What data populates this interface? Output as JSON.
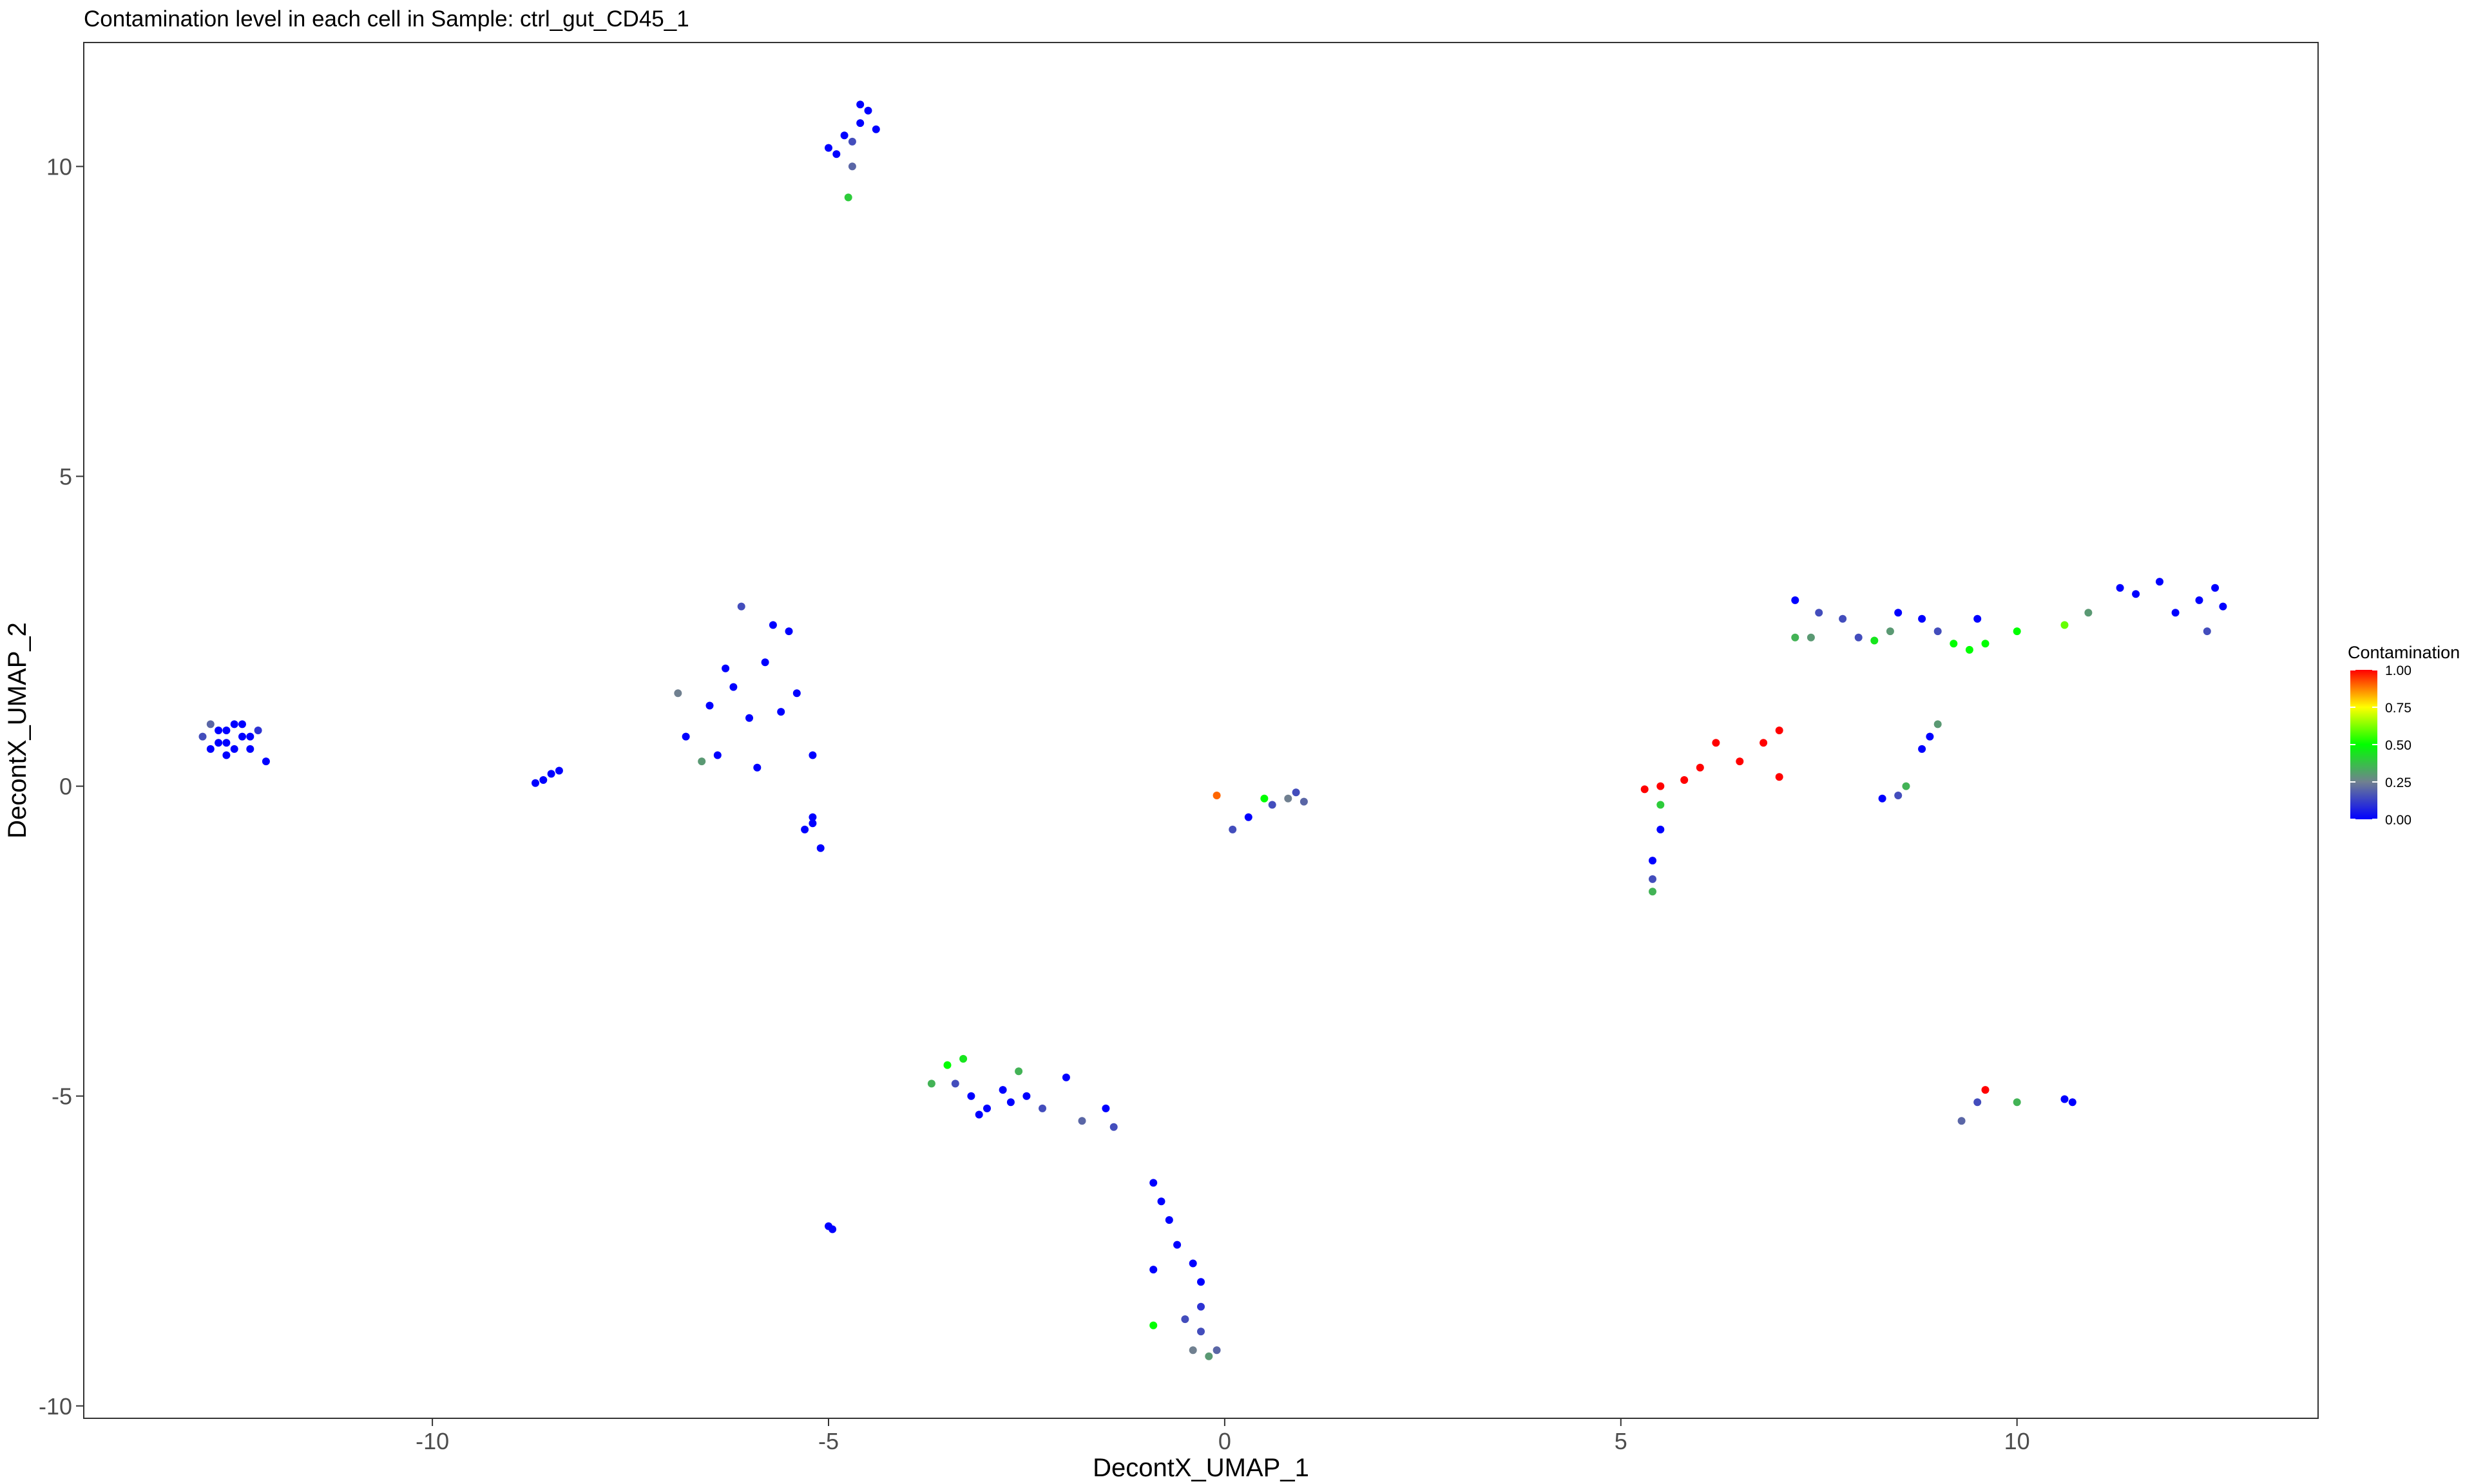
{
  "chart_data": {
    "type": "scatter",
    "title": "Contamination level in each cell in Sample: ctrl_gut_CD45_1",
    "xlabel": "DecontX_UMAP_1",
    "ylabel": "DecontX_UMAP_2",
    "xlim": [
      -14.4,
      13.8
    ],
    "ylim": [
      -10.2,
      12.0
    ],
    "x_ticks": [
      -10,
      -5,
      0,
      5,
      10
    ],
    "y_ticks": [
      -10,
      -5,
      0,
      5,
      10
    ],
    "x_tick_labels": [
      "-10",
      "-5",
      "0",
      "5",
      "10"
    ],
    "y_tick_labels": [
      "-10",
      "-5",
      "0",
      "5",
      "10"
    ],
    "grid": false,
    "legend": {
      "title": "Contamination",
      "position": "right",
      "ticks": [
        0.0,
        0.25,
        0.5,
        0.75,
        1.0
      ],
      "tick_labels": [
        "0.00",
        "0.25",
        "0.50",
        "0.75",
        "1.00"
      ],
      "colors": [
        "#0000ff",
        "#708090",
        "#00ff00",
        "#ffff00",
        "#ff0000"
      ]
    },
    "points": [
      [
        -12.7,
        0.9,
        0.0
      ],
      [
        -12.6,
        0.7,
        0.0
      ],
      [
        -12.4,
        0.8,
        0.0
      ],
      [
        -12.8,
        0.6,
        0.0
      ],
      [
        -12.5,
        1.0,
        0.0
      ],
      [
        -12.3,
        0.6,
        0.0
      ],
      [
        -12.9,
        0.8,
        0.15
      ],
      [
        -12.2,
        0.9,
        0.1
      ],
      [
        -12.6,
        0.5,
        0.0
      ],
      [
        -12.4,
        1.0,
        0.0
      ],
      [
        -12.7,
        0.7,
        0.0
      ],
      [
        -12.5,
        0.6,
        0.0
      ],
      [
        -12.3,
        0.8,
        0.0
      ],
      [
        -12.8,
        1.0,
        0.2
      ],
      [
        -12.1,
        0.4,
        0.0
      ],
      [
        -12.6,
        0.9,
        0.0
      ],
      [
        -8.5,
        0.2,
        0.0
      ],
      [
        -8.6,
        0.1,
        0.0
      ],
      [
        -8.7,
        0.05,
        0.0
      ],
      [
        -8.4,
        0.25,
        0.0
      ],
      [
        -6.5,
        1.3,
        0.0
      ],
      [
        -6.2,
        1.6,
        0.0
      ],
      [
        -6.0,
        1.1,
        0.0
      ],
      [
        -5.8,
        2.0,
        0.0
      ],
      [
        -5.5,
        2.5,
        0.0
      ],
      [
        -6.8,
        0.8,
        0.0
      ],
      [
        -6.4,
        0.5,
        0.0
      ],
      [
        -5.9,
        0.3,
        0.0
      ],
      [
        -6.1,
        2.9,
        0.15
      ],
      [
        -5.7,
        2.6,
        0.0
      ],
      [
        -5.4,
        1.5,
        0.0
      ],
      [
        -6.6,
        0.4,
        0.3
      ],
      [
        -6.3,
        1.9,
        0.0
      ],
      [
        -5.6,
        1.2,
        0.0
      ],
      [
        -6.9,
        1.5,
        0.25
      ],
      [
        -5.2,
        0.5,
        0.0
      ],
      [
        -5.2,
        -0.5,
        0.0
      ],
      [
        -5.3,
        -0.7,
        0.0
      ],
      [
        -5.1,
        -1.0,
        0.0
      ],
      [
        -5.2,
        -0.6,
        0.0
      ],
      [
        -4.8,
        10.5,
        0.0
      ],
      [
        -4.6,
        10.7,
        0.0
      ],
      [
        -4.9,
        10.2,
        0.0
      ],
      [
        -4.5,
        10.9,
        0.0
      ],
      [
        -4.7,
        10.4,
        0.15
      ],
      [
        -4.4,
        10.6,
        0.0
      ],
      [
        -5.0,
        10.3,
        0.0
      ],
      [
        -4.6,
        11.0,
        0.0
      ],
      [
        -4.75,
        9.5,
        0.4
      ],
      [
        -4.7,
        10.0,
        0.2
      ],
      [
        -5.0,
        -7.1,
        0.0
      ],
      [
        -4.95,
        -7.15,
        0.0
      ],
      [
        -3.5,
        -4.5,
        0.5
      ],
      [
        -3.4,
        -4.8,
        0.15
      ],
      [
        -3.2,
        -5.0,
        0.0
      ],
      [
        -3.0,
        -5.2,
        0.0
      ],
      [
        -2.8,
        -4.9,
        0.0
      ],
      [
        -2.5,
        -5.0,
        0.0
      ],
      [
        -2.3,
        -5.2,
        0.15
      ],
      [
        -2.0,
        -4.7,
        0.0
      ],
      [
        -3.7,
        -4.8,
        0.35
      ],
      [
        -2.6,
        -4.6,
        0.35
      ],
      [
        -1.8,
        -5.4,
        0.2
      ],
      [
        -1.4,
        -5.5,
        0.15
      ],
      [
        -1.5,
        -5.2,
        0.0
      ],
      [
        -3.1,
        -5.3,
        0.0
      ],
      [
        -2.7,
        -5.1,
        0.0
      ],
      [
        -3.3,
        -4.4,
        0.45
      ],
      [
        -0.9,
        -6.4,
        0.0
      ],
      [
        -0.8,
        -6.7,
        0.0
      ],
      [
        -0.7,
        -7.0,
        0.0
      ],
      [
        -0.6,
        -7.4,
        0.0
      ],
      [
        -0.4,
        -7.7,
        0.0
      ],
      [
        -0.3,
        -8.0,
        0.0
      ],
      [
        -0.3,
        -8.4,
        0.1
      ],
      [
        -0.3,
        -8.8,
        0.15
      ],
      [
        -0.4,
        -9.1,
        0.25
      ],
      [
        -0.2,
        -9.2,
        0.3
      ],
      [
        -0.9,
        -7.8,
        0.0
      ],
      [
        -0.5,
        -8.6,
        0.15
      ],
      [
        -0.9,
        -8.7,
        0.5
      ],
      [
        -0.1,
        -9.1,
        0.2
      ],
      [
        -0.1,
        -0.15,
        0.9
      ],
      [
        0.1,
        -0.7,
        0.15
      ],
      [
        0.3,
        -0.5,
        0.0
      ],
      [
        0.6,
        -0.3,
        0.15
      ],
      [
        0.8,
        -0.2,
        0.25
      ],
      [
        0.9,
        -0.1,
        0.15
      ],
      [
        1.0,
        -0.25,
        0.2
      ],
      [
        0.5,
        -0.2,
        0.5
      ],
      [
        5.3,
        -0.05,
        1.0
      ],
      [
        5.5,
        0.0,
        1.0
      ],
      [
        5.8,
        0.1,
        1.0
      ],
      [
        6.0,
        0.3,
        1.0
      ],
      [
        6.2,
        0.7,
        1.0
      ],
      [
        6.5,
        0.4,
        1.0
      ],
      [
        6.8,
        0.7,
        1.0
      ],
      [
        7.0,
        0.9,
        1.0
      ],
      [
        7.0,
        0.15,
        1.0
      ],
      [
        5.5,
        -0.3,
        0.4
      ],
      [
        5.4,
        -1.2,
        0.0
      ],
      [
        5.4,
        -1.5,
        0.15
      ],
      [
        5.4,
        -1.7,
        0.35
      ],
      [
        5.5,
        -0.7,
        0.0
      ],
      [
        7.2,
        3.0,
        0.0
      ],
      [
        7.5,
        2.8,
        0.15
      ],
      [
        7.4,
        2.4,
        0.3
      ],
      [
        7.8,
        2.7,
        0.15
      ],
      [
        8.2,
        2.35,
        0.45
      ],
      [
        8.4,
        2.5,
        0.3
      ],
      [
        8.5,
        2.8,
        0.0
      ],
      [
        8.8,
        2.7,
        0.0
      ],
      [
        9.0,
        2.5,
        0.15
      ],
      [
        9.2,
        2.3,
        0.5
      ],
      [
        9.4,
        2.2,
        0.5
      ],
      [
        9.6,
        2.3,
        0.5
      ],
      [
        9.5,
        2.7,
        0.0
      ],
      [
        10.0,
        2.5,
        0.5
      ],
      [
        10.6,
        2.6,
        0.6
      ],
      [
        10.9,
        2.8,
        0.3
      ],
      [
        11.5,
        3.1,
        0.0
      ],
      [
        11.8,
        3.3,
        0.0
      ],
      [
        12.0,
        2.8,
        0.0
      ],
      [
        12.3,
        3.0,
        0.0
      ],
      [
        12.5,
        3.2,
        0.0
      ],
      [
        12.4,
        2.5,
        0.15
      ],
      [
        11.3,
        3.2,
        0.0
      ],
      [
        12.6,
        2.9,
        0.0
      ],
      [
        7.2,
        2.4,
        0.35
      ],
      [
        8.0,
        2.4,
        0.15
      ],
      [
        8.3,
        -0.2,
        0.0
      ],
      [
        8.5,
        -0.15,
        0.15
      ],
      [
        8.6,
        0.0,
        0.35
      ],
      [
        8.8,
        0.6,
        0.0
      ],
      [
        9.0,
        1.0,
        0.3
      ],
      [
        8.9,
        0.8,
        0.0
      ],
      [
        9.3,
        -5.4,
        0.2
      ],
      [
        9.5,
        -5.1,
        0.15
      ],
      [
        9.6,
        -4.9,
        1.0
      ],
      [
        10.0,
        -5.1,
        0.35
      ],
      [
        10.7,
        -5.1,
        0.0
      ],
      [
        10.6,
        -5.05,
        0.0
      ]
    ]
  }
}
